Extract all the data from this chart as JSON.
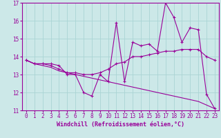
{
  "x": [
    0,
    1,
    2,
    3,
    4,
    5,
    6,
    7,
    8,
    9,
    10,
    11,
    12,
    13,
    14,
    15,
    16,
    17,
    18,
    19,
    20,
    21,
    22,
    23
  ],
  "line1": [
    13.8,
    13.6,
    13.6,
    13.6,
    13.5,
    13.0,
    13.0,
    12.0,
    11.8,
    13.0,
    12.6,
    15.9,
    12.6,
    14.8,
    14.6,
    14.7,
    14.3,
    17.0,
    16.2,
    14.8,
    15.6,
    15.5,
    11.9,
    11.1
  ],
  "line2": [
    13.8,
    13.6,
    13.6,
    13.5,
    13.3,
    13.1,
    13.1,
    13.0,
    13.0,
    13.1,
    13.3,
    13.6,
    13.7,
    14.0,
    14.0,
    14.1,
    14.2,
    14.3,
    14.3,
    14.4,
    14.4,
    14.4,
    14.0,
    13.8
  ],
  "line3": [
    13.8,
    13.6,
    13.5,
    13.4,
    13.2,
    13.1,
    13.0,
    12.9,
    12.8,
    12.7,
    12.6,
    12.5,
    12.4,
    12.3,
    12.2,
    12.1,
    12.0,
    11.9,
    11.8,
    11.7,
    11.6,
    11.5,
    11.3,
    11.1
  ],
  "line_color": "#990099",
  "bg_color": "#cce8e8",
  "grid_color": "#aad4d4",
  "xlabel": "Windchill (Refroidissement éolien,°C)",
  "ylim": [
    11,
    17
  ],
  "xlim": [
    -0.5,
    23.5
  ],
  "yticks": [
    11,
    12,
    13,
    14,
    15,
    16,
    17
  ],
  "xticks": [
    0,
    1,
    2,
    3,
    4,
    5,
    6,
    7,
    8,
    9,
    10,
    11,
    12,
    13,
    14,
    15,
    16,
    17,
    18,
    19,
    20,
    21,
    22,
    23
  ]
}
